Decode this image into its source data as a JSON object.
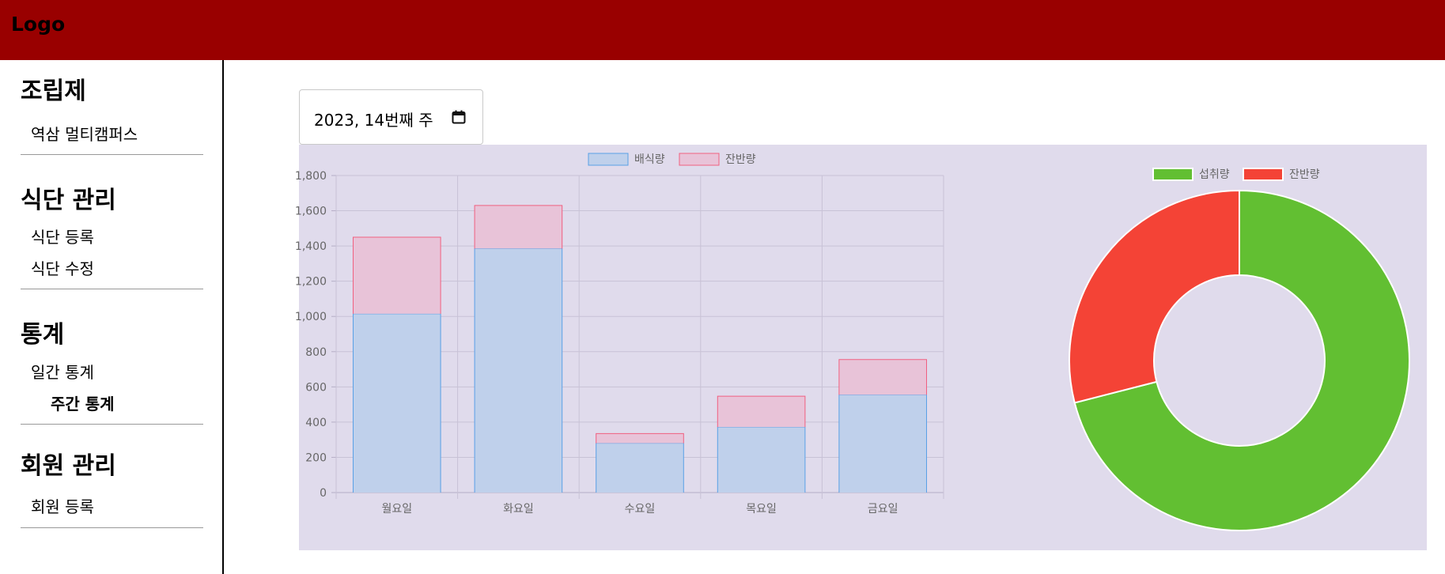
{
  "header": {
    "logo": "Logo",
    "bg_color": "#990000"
  },
  "sidebar": {
    "sections": [
      {
        "title": "조립제",
        "items": [
          {
            "label": "역삼 멀티캠퍼스"
          }
        ]
      },
      {
        "title": "식단 관리",
        "items": [
          {
            "label": "식단 등록"
          },
          {
            "label": "식단 수정"
          }
        ]
      },
      {
        "title": "통계",
        "items": [
          {
            "label": "일간 통계"
          },
          {
            "label": "주간 통계",
            "active": true
          }
        ]
      },
      {
        "title": "회원 관리",
        "items": [
          {
            "label": "회원 등록"
          }
        ]
      }
    ]
  },
  "week_picker": {
    "value": "2023, 14번째 주",
    "icon": "calendar-icon"
  },
  "chart_data": [
    {
      "type": "bar",
      "stacked": true,
      "categories": [
        "월요일",
        "화요일",
        "수요일",
        "목요일",
        "금요일"
      ],
      "series": [
        {
          "name": "배식량",
          "values": [
            1015,
            1385,
            280,
            372,
            555
          ],
          "fill": "#bfd0eb",
          "stroke": "#5aa0e6"
        },
        {
          "name": "잔반량",
          "values": [
            435,
            245,
            55,
            175,
            200
          ],
          "fill": "#e8c3d8",
          "stroke": "#f06080"
        }
      ],
      "ylim": [
        0,
        1800
      ],
      "yticks": [
        0,
        200,
        400,
        600,
        800,
        1000,
        1200,
        1400,
        1600,
        1800
      ],
      "ytick_labels": [
        "0",
        "200",
        "400",
        "600",
        "800",
        "1,000",
        "1,200",
        "1,400",
        "1,600",
        "1,800"
      ],
      "grid": true,
      "legend": "top"
    },
    {
      "type": "pie",
      "donut": true,
      "labels": [
        "섭취량",
        "잔반량"
      ],
      "values": [
        71,
        29
      ],
      "colors": [
        "#62bf32",
        "#f44336"
      ],
      "legend": "top"
    }
  ]
}
